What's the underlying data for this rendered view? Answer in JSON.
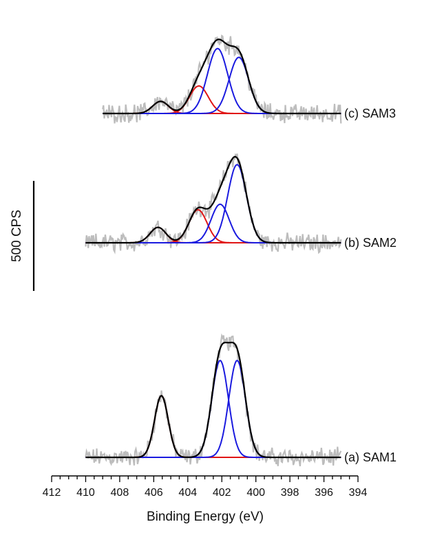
{
  "chart_data": {
    "type": "line",
    "xlabel": "Binding Energy (eV)",
    "xlim": [
      412,
      394
    ],
    "x_reversed": true,
    "x_ticks": [
      412,
      410,
      408,
      406,
      404,
      402,
      400,
      398,
      396,
      394
    ],
    "scale_bar": {
      "label": "500 CPS",
      "value": 500
    },
    "colors": {
      "raw": "#bdbdbd",
      "envelope": "#000000",
      "blue_component": "#1a1adf",
      "red_component": "#e01515",
      "baseline": "#1a1a7a"
    },
    "traces": [
      {
        "name": "(a) SAM1",
        "x_range": [
          410,
          395
        ],
        "components": [
          {
            "color": "red",
            "center": 405.55,
            "fwhm": 0.95,
            "height": 280
          },
          {
            "color": "blue",
            "center": 402.1,
            "fwhm": 1.15,
            "height": 440
          },
          {
            "color": "blue",
            "center": 401.1,
            "fwhm": 1.15,
            "height": 440
          }
        ]
      },
      {
        "name": "(b) SAM2",
        "x_range": [
          410,
          395
        ],
        "components": [
          {
            "color": "red",
            "center": 405.75,
            "fwhm": 1.1,
            "height": 70
          },
          {
            "color": "red",
            "center": 403.4,
            "fwhm": 1.25,
            "height": 150
          },
          {
            "color": "blue",
            "center": 402.1,
            "fwhm": 1.25,
            "height": 175
          },
          {
            "color": "blue",
            "center": 401.1,
            "fwhm": 1.3,
            "height": 355
          }
        ]
      },
      {
        "name": "(c) SAM3",
        "x_range": [
          409,
          395
        ],
        "components": [
          {
            "color": "red",
            "center": 405.6,
            "fwhm": 1.1,
            "height": 55
          },
          {
            "color": "red",
            "center": 403.35,
            "fwhm": 1.3,
            "height": 125
          },
          {
            "color": "blue",
            "center": 402.25,
            "fwhm": 1.4,
            "height": 295
          },
          {
            "color": "blue",
            "center": 401.0,
            "fwhm": 1.35,
            "height": 255
          }
        ]
      }
    ]
  }
}
